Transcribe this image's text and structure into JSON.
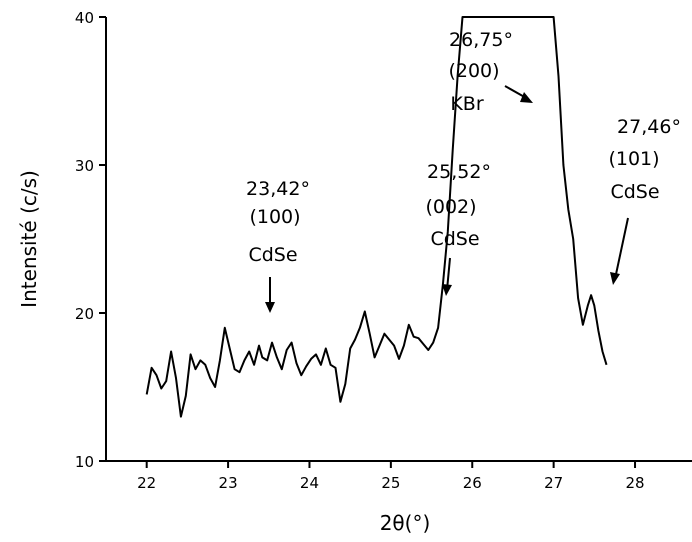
{
  "chart_data": {
    "type": "line",
    "title": "",
    "xlabel": "2θ(°)",
    "ylabel": "Intensité (c/s)",
    "xlim": [
      21.5,
      28.7
    ],
    "ylim": [
      10,
      40
    ],
    "x_ticks": [
      {
        "value": 22,
        "label": "22"
      },
      {
        "value": 23,
        "label": "23"
      },
      {
        "value": 24,
        "label": "24"
      },
      {
        "value": 25,
        "label": "25"
      },
      {
        "value": 26,
        "label": "26"
      },
      {
        "value": 27,
        "label": "27"
      },
      {
        "value": 28,
        "label": "28"
      }
    ],
    "y_ticks": [
      {
        "value": 10,
        "label": "10"
      },
      {
        "value": 20,
        "label": "20"
      },
      {
        "value": 30,
        "label": "30"
      },
      {
        "value": 40,
        "label": "40"
      }
    ],
    "grid": false,
    "series": [
      {
        "color": "#000000",
        "x": [
          22.0,
          22.06,
          22.12,
          22.18,
          22.24,
          22.3,
          22.36,
          22.42,
          22.48,
          22.54,
          22.6,
          22.66,
          22.72,
          22.78,
          22.84,
          22.9,
          22.96,
          23.02,
          23.08,
          23.14,
          23.2,
          23.26,
          23.32,
          23.38,
          23.42,
          23.48,
          23.54,
          23.6,
          23.66,
          23.72,
          23.78,
          23.84,
          23.9,
          23.96,
          24.02,
          24.08,
          24.14,
          24.2,
          24.26,
          24.32,
          24.38,
          24.44,
          24.5,
          24.56,
          24.62,
          24.68,
          24.74,
          24.8,
          24.86,
          24.92,
          24.98,
          25.04,
          25.1,
          25.16,
          25.22,
          25.28,
          25.34,
          25.4,
          25.46,
          25.52,
          25.58,
          25.64,
          25.7,
          25.76,
          25.82,
          25.88,
          25.94,
          26.0,
          26.06,
          26.12,
          26.18,
          26.24,
          26.3,
          26.36,
          26.42,
          26.48,
          26.54,
          26.6,
          26.65,
          26.7,
          26.75,
          26.8,
          26.85,
          26.9,
          26.95,
          27.0,
          27.06,
          27.12,
          27.18,
          27.24,
          27.3,
          27.36,
          27.42,
          27.46,
          27.5,
          27.55,
          27.6,
          27.65
        ],
        "y": [
          14.5,
          16.3,
          15.8,
          14.9,
          15.4,
          17.4,
          15.6,
          13.0,
          14.4,
          17.2,
          16.2,
          16.8,
          16.5,
          15.6,
          15.0,
          16.8,
          19.0,
          17.6,
          16.2,
          16.0,
          16.8,
          17.4,
          16.5,
          17.8,
          17.0,
          16.8,
          18.0,
          17.0,
          16.2,
          17.5,
          18.0,
          16.6,
          15.8,
          16.4,
          16.9,
          17.2,
          16.5,
          17.6,
          16.5,
          16.3,
          14.0,
          15.2,
          17.6,
          18.2,
          19.0,
          20.1,
          18.6,
          17.0,
          17.8,
          18.6,
          18.2,
          17.8,
          16.9,
          17.8,
          19.2,
          18.4,
          18.3,
          17.9,
          17.5,
          18.0,
          19.0,
          22.0,
          25.5,
          31.0,
          36.0,
          40.0,
          40.0,
          40.0,
          40.0,
          40.0,
          40.0,
          40.0,
          40.0,
          40.0,
          40.0,
          40.0,
          40.0,
          40.0,
          40.0,
          40.0,
          40.0,
          40.0,
          40.0,
          40.0,
          40.0,
          40.0,
          36.0,
          30.0,
          27.0,
          25.0,
          21.0,
          19.2,
          20.5,
          21.2,
          20.5,
          18.8,
          17.4,
          16.5
        ]
      }
    ],
    "annotations": [
      {
        "lines": [
          "23,42°",
          "(100)",
          "CdSe"
        ]
      },
      {
        "lines": [
          "25,52°",
          "(002)",
          "CdSe"
        ]
      },
      {
        "lines": [
          "26,75°",
          "(200)",
          "KBr"
        ]
      },
      {
        "lines": [
          "27,46°",
          "(101)",
          "CdSe"
        ]
      }
    ]
  }
}
